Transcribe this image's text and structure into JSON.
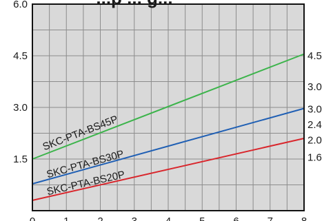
{
  "chart_data": {
    "type": "line",
    "title": "...p ... g...",
    "xlabel": "",
    "ylabel": "",
    "xlim": [
      0,
      8
    ],
    "ylim": [
      0,
      6
    ],
    "x_ticks": [
      "0",
      "1",
      "2",
      "3",
      "4",
      "5",
      "6",
      "7",
      "8"
    ],
    "y_ticks": [
      {
        "value": 6.0,
        "label": "6.0"
      },
      {
        "value": 4.5,
        "label": "4.5"
      },
      {
        "value": 3.0,
        "label": "3.0"
      },
      {
        "value": 1.5,
        "label": "1.5"
      }
    ],
    "grid": true,
    "right_labels": [
      {
        "value": 4.5,
        "label": "4.5"
      },
      {
        "value": 3.6,
        "label": "3.0"
      },
      {
        "value": 2.95,
        "label": "3.0"
      },
      {
        "value": 2.5,
        "label": "2.4"
      },
      {
        "value": 2.05,
        "label": "2.0"
      },
      {
        "value": 1.55,
        "label": "1.6"
      }
    ],
    "series": [
      {
        "name": "SKC-PTA-BS45P",
        "color": "#3cb44b",
        "x": [
          0,
          8
        ],
        "y": [
          1.5,
          4.55
        ]
      },
      {
        "name": "SKC-PTA-BS30P",
        "color": "#1f5fb4",
        "x": [
          0,
          8
        ],
        "y": [
          0.78,
          2.97
        ]
      },
      {
        "name": "SKC-PTA-BS20P",
        "color": "#d9262c",
        "x": [
          0,
          8
        ],
        "y": [
          0.3,
          2.1
        ]
      }
    ],
    "series_label_positions": [
      {
        "x": 0.35,
        "y": 1.75
      },
      {
        "x": 0.45,
        "y": 0.95
      },
      {
        "x": 0.45,
        "y": 0.45
      }
    ]
  }
}
